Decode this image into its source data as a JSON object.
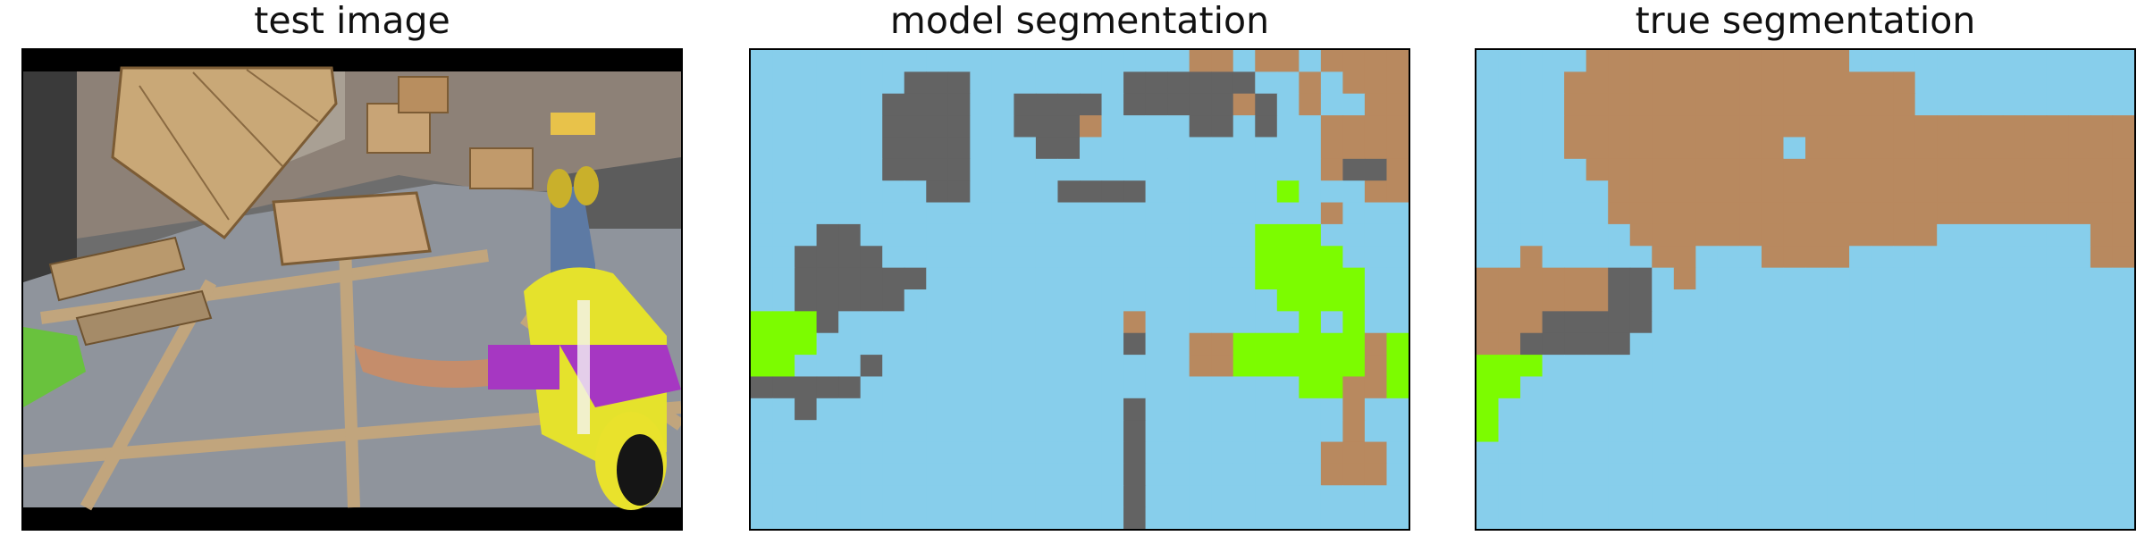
{
  "titles": {
    "test": "test image",
    "model": "model segmentation",
    "true": "true segmentation"
  },
  "colors": {
    "background_class": "#87CEEB",
    "structure_class": "#B8895F",
    "object_class": "#636363",
    "person_class": "#7CFC00",
    "frame": "#000000"
  },
  "grid": {
    "cols": 30,
    "rows": 22
  },
  "model_mask_rows": [
    "BBBBBBBBBBBBBBBBBBBBSSBSSBSSSS",
    "BBBBBBBGGGBBBBBBBGGGGGGBBSBSSS",
    "BBBBBBGGGGBBGGGGBGGGGGSGBSBBSS",
    "BBBBBBGGGGBBGGGSBBBBGGBGBBSSSS",
    "BBBBBBGGGGBBBGGBBBBBBBBBBBSSSS",
    "BBBBBBGGGGBBBBBBBBBBBBBBBBSGGS",
    "BBBBBBBBGGBBBBGGGGBBBBBBPBBBSS",
    "BBBBBBBBBBBBBBBBBBBBBBBBBBSBBB",
    "BBBGGBBBBBBBBBBBBBBBBBBPPPBBBB",
    "BBGGGGBBBBBBBBBBBBBBBBBPPPPBBB",
    "BBGGGGGGBBBBBBBBBBBBBBBPPPPPBB",
    "BBGGGGGBBBBBBBBBBBBBBBBBPPPPBB",
    "PPPGBBBBBBBBBBBBBSBBBBBBBPBPBB",
    "PPPBBBBBBBBBBBBBBGBBSSPPPPPPSP",
    "PPBBBGBBBBBBBBBBBBBBSSPPPPPPSP",
    "GGGGGBBBBBBBBBBBBBBBBBBBBPPSSP",
    "BBGBBBBBBBBBBBBBBGBBBBBBBBBSBB",
    "BBBBBBBBBBBBBBBBBGBBBBBBBBBSBB",
    "BBBBBBBBBBBBBBBBBGBBBBBBBBSSSB",
    "BBBBBBBBBBBBBBBBBGBBBBBBBBSSSB",
    "BBBBBBBBBBBBBBBBBGBBBBBBBBBBBB",
    "BBBBBBBBBBBBBBBBBGBBBBBBBBBBBB"
  ],
  "true_mask_rows": [
    "BBBBBSSSSSSSSSSSSBBBBBBBBBBBBB",
    "BBBBSSSSSSSSSSSSSSSSBBBBBBBBBB",
    "BBBBSSSSSSSSSSSSSSSSBBBBBBBBBB",
    "BBBBSSSSSSSSSSSSSSSSSSSSSSSSSS",
    "BBBBSSSSSSSSSSBSSSSSSSSSSSSSSS",
    "BBBBBSSSSSSSSSSSSSSSSSSSSSSSSS",
    "BBBBBBSSSSSSSSSSSSSSSSSSSSSSSS",
    "BBBBBBSSSSSSSSSSSSSSSSSSSSSSSS",
    "BBBBBBBSSSSSSSSSSSSSSBBBBBBBSS",
    "BBSBBBBBSSBBBSSSSBBBBBBBBBBBSS",
    "SSSSSSGGBSBBBBBBBBBBBBBBBBBBBB",
    "SSSSSSGGBBBBBBBBBBBBBBBBBBBBBB",
    "SSSGGGGGBBBBBBBBBBBBBBBBBBBBBB",
    "SSGGGGGBBBBBBBBBBBBBBBBBBBBBBB",
    "PPPBBBBBBBBBBBBBBBBBBBBBBBBBBB",
    "PPBBBBBBBBBBBBBBBBBBBBBBBBBBBB",
    "PBBBBBBBBBBBBBBBBBBBBBBBBBBBBB",
    "PBBBBBBBBBBBBBBBBBBBBBBBBBBBBB",
    "BBBBBBBBBBBBBBBBBBBBBBBBBBBBBB",
    "BBBBBBBBBBBBBBBBBBBBBBBBBBBBBB",
    "BBBBBBBBBBBBBBBBBBBBBBBBBBBBBB",
    "BBBBBBBBBBBBBBBBBBBBBBBBBBBBBB"
  ]
}
